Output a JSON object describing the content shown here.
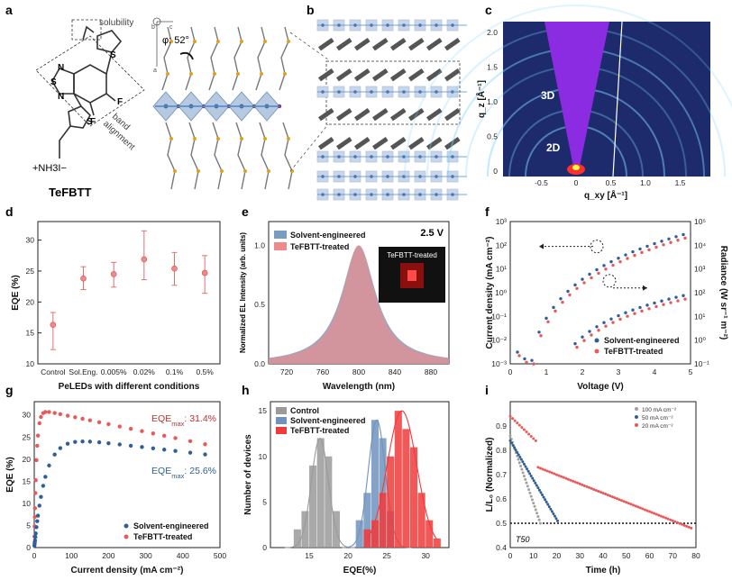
{
  "panel_labels": [
    "a",
    "b",
    "c",
    "d",
    "e",
    "f",
    "g",
    "h",
    "i"
  ],
  "panel_a": {
    "solubility": "solubility",
    "band_alignment_1": "band",
    "band_alignment_2": "alignment",
    "molecule_name": "TeFBTT",
    "amine": "+NH3I−",
    "angle": "φ: 52°",
    "atoms": {
      "S": "S",
      "N": "N",
      "F": "F"
    },
    "axes": {
      "a": "a",
      "b": "b",
      "c": "c"
    }
  },
  "panel_c": {
    "xlabel": "q_xy [Å⁻¹]",
    "ylabel": "q_z [Å⁻¹]",
    "xticks": [
      "-0.5",
      "0",
      "0.5",
      "1.0",
      "1.5"
    ],
    "yticks": [
      "0",
      "0.5",
      "1.0",
      "1.5",
      "2.0"
    ],
    "labels": [
      "3D",
      "2D"
    ]
  },
  "chart_data": [
    {
      "id": "d",
      "type": "scatter",
      "xlabel": "PeLEDs with different conditions",
      "ylabel": "EQE (%)",
      "categories": [
        "Control",
        "Sol.Eng.",
        "0.005%",
        "0.02%",
        "0.1%",
        "0.5%"
      ],
      "values": [
        16.3,
        23.8,
        24.5,
        26.9,
        25.4,
        24.7
      ],
      "err_low": [
        12.3,
        22.0,
        22.4,
        23.6,
        22.7,
        21.4
      ],
      "err_high": [
        18.3,
        25.7,
        26.4,
        31.5,
        28.0,
        27.5
      ],
      "ylim": [
        10,
        33
      ],
      "yticks": [
        10,
        15,
        20,
        25,
        30
      ]
    },
    {
      "id": "e",
      "type": "area",
      "xlabel": "Wavelength (nm)",
      "ylabel": "Normalized EL Intensity (arb. units)",
      "xlim": [
        700,
        900
      ],
      "ylim": [
        0,
        1.2
      ],
      "xticks": [
        720,
        760,
        800,
        840,
        880
      ],
      "yticks": [
        0.0,
        0.5,
        1.0
      ],
      "peak_nm": 800,
      "voltage_label": "2.5 V",
      "inset_label": "TeFBTT-treated",
      "series": [
        {
          "name": "Solvent-engineered",
          "color": "#7a9cc0"
        },
        {
          "name": "TeFBTT-treated",
          "color": "#f08a8a"
        }
      ]
    },
    {
      "id": "f",
      "type": "scatter",
      "xlabel": "Voltage (V)",
      "ylabel_left": "Current density (mA cm⁻²)",
      "ylabel_right": "Radiance (W sr⁻¹ m⁻²)",
      "xlim": [
        0,
        5
      ],
      "xticks": [
        0,
        1,
        2,
        3,
        4,
        5
      ],
      "yticks_left": [
        "10⁻³",
        "10⁻²",
        "10⁻¹",
        "10⁰",
        "10¹",
        "10²",
        "10³"
      ],
      "yticks_right": [
        "10⁻¹",
        "10⁰",
        "10¹",
        "10²",
        "10³",
        "10⁴",
        "10⁵"
      ],
      "series": [
        {
          "name": "Solvent-engineered",
          "color": "#2f5f94"
        },
        {
          "name": "TeFBTT-treated",
          "color": "#e85a5a"
        }
      ]
    },
    {
      "id": "g",
      "type": "scatter",
      "xlabel": "Current density (mA cm⁻²)",
      "ylabel": "EQE (%)",
      "xlim": [
        0,
        500
      ],
      "ylim": [
        0,
        33
      ],
      "xticks": [
        0,
        100,
        200,
        300,
        400,
        500
      ],
      "yticks": [
        0,
        5,
        10,
        15,
        20,
        25,
        30
      ],
      "annotations": [
        {
          "base": "EQE",
          "sub": "max",
          "value": ": 31.4%",
          "color": "#c03030"
        },
        {
          "base": "EQE",
          "sub": "max",
          "value": ": 25.6%",
          "color": "#2f5f94"
        }
      ],
      "series": [
        {
          "name": "Solvent-engineered",
          "color": "#2f5f94",
          "max": 25.6
        },
        {
          "name": "TeFBTT-treated",
          "color": "#e85a5a",
          "max": 31.4
        }
      ]
    },
    {
      "id": "h",
      "type": "bar",
      "xlabel": "EQE(%)",
      "ylabel": "Number of devices",
      "xlim": [
        10,
        33
      ],
      "ylim": [
        0,
        16
      ],
      "xticks": [
        15,
        20,
        25,
        30
      ],
      "yticks": [
        0,
        5,
        10,
        15
      ],
      "series": [
        {
          "name": "Control",
          "color": "#9a9a9a",
          "bins": [
            13.5,
            14.5,
            15.5,
            16.5,
            17.5,
            18.5
          ],
          "counts": [
            2,
            4,
            9,
            12,
            10,
            4
          ]
        },
        {
          "name": "Solvent-engineered",
          "color": "#6f93bd",
          "bins": [
            21.5,
            22.5,
            23.5,
            24.5,
            25.5
          ],
          "counts": [
            3,
            6,
            14,
            12,
            4
          ]
        },
        {
          "name": "TeFBTT-treated",
          "color": "#ee3b3b",
          "bins": [
            22.5,
            23.5,
            24.5,
            25.5,
            26.5,
            27.5,
            28.5,
            29.5,
            30.5,
            31.5
          ],
          "counts": [
            2,
            3,
            6,
            10,
            15,
            13,
            11,
            6,
            3,
            1
          ]
        }
      ]
    },
    {
      "id": "i",
      "type": "scatter",
      "xlabel": "Time (h)",
      "ylabel": "L/L₀ (Normalized)",
      "xlim": [
        0,
        80
      ],
      "ylim": [
        0.4,
        1.0
      ],
      "xticks": [
        0,
        10,
        20,
        30,
        40,
        50,
        60,
        70,
        80
      ],
      "yticks": [
        0.4,
        0.5,
        0.6,
        0.7,
        0.8,
        0.9
      ],
      "t50_label": "T50",
      "series": [
        {
          "name": "100 mA cm⁻²",
          "color": "#a0a0a0",
          "t50_h": 13
        },
        {
          "name": "50 mA cm⁻²",
          "color": "#2f5f94",
          "t50_h": 21
        },
        {
          "name": "20 mA cm⁻²",
          "color": "#e85a5a",
          "t50_h": 78
        }
      ]
    }
  ]
}
